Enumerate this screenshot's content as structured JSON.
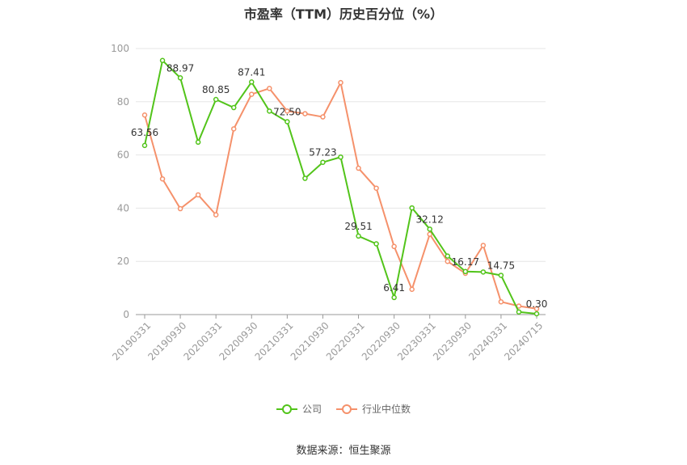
{
  "chart_data": {
    "type": "line",
    "title": "市盈率（TTM）历史百分位（%）",
    "xlabel": "",
    "ylabel": "",
    "ylim": [
      0,
      100
    ],
    "yticks": [
      "0",
      "20",
      "40",
      "60",
      "80",
      "100"
    ],
    "x": [
      "20190331",
      "20190630",
      "20190930",
      "20191231",
      "20200331",
      "20200630",
      "20200930",
      "20201231",
      "20210331",
      "20210630",
      "20210930",
      "20211231",
      "20220331",
      "20220630",
      "20220930",
      "20221231",
      "20230331",
      "20230630",
      "20230930",
      "20231231",
      "20240331",
      "20240630",
      "20240715"
    ],
    "xtick_labels": [
      "20190331",
      "20190930",
      "20200331",
      "20200930",
      "20210331",
      "20210930",
      "20220331",
      "20220930",
      "20230331",
      "20230930",
      "20240331",
      "20240715"
    ],
    "xtick_indices": [
      0,
      2,
      4,
      6,
      8,
      10,
      12,
      14,
      16,
      18,
      20,
      22
    ],
    "grid": true,
    "legend_position": "bottom",
    "series": [
      {
        "name": "公司",
        "color": "#52c41a",
        "values": [
          63.56,
          95.5,
          88.97,
          64.8,
          80.85,
          77.8,
          87.41,
          76.5,
          72.5,
          51.2,
          57.23,
          59.2,
          29.51,
          26.6,
          6.41,
          40.1,
          32.12,
          22.0,
          16.17,
          16.0,
          14.75,
          1.0,
          0.3
        ],
        "labels": {
          "0": "63.56",
          "2": "88.97",
          "4": "80.85",
          "6": "87.41",
          "8": "72.50",
          "10": "57.23",
          "12": "29.51",
          "14": "6.41",
          "16": "32.12",
          "18": "16.17",
          "20": "14.75",
          "22": "0.30"
        }
      },
      {
        "name": "行业中位数",
        "color": "#f5916b",
        "values": [
          75.0,
          51.0,
          39.8,
          45.0,
          37.5,
          69.8,
          82.8,
          85.0,
          76.5,
          75.5,
          74.3,
          87.2,
          55.0,
          47.5,
          25.6,
          9.5,
          30.2,
          20.0,
          15.5,
          26.0,
          4.8,
          3.2,
          2.2
        ]
      }
    ]
  },
  "source": "数据来源：恒生聚源"
}
